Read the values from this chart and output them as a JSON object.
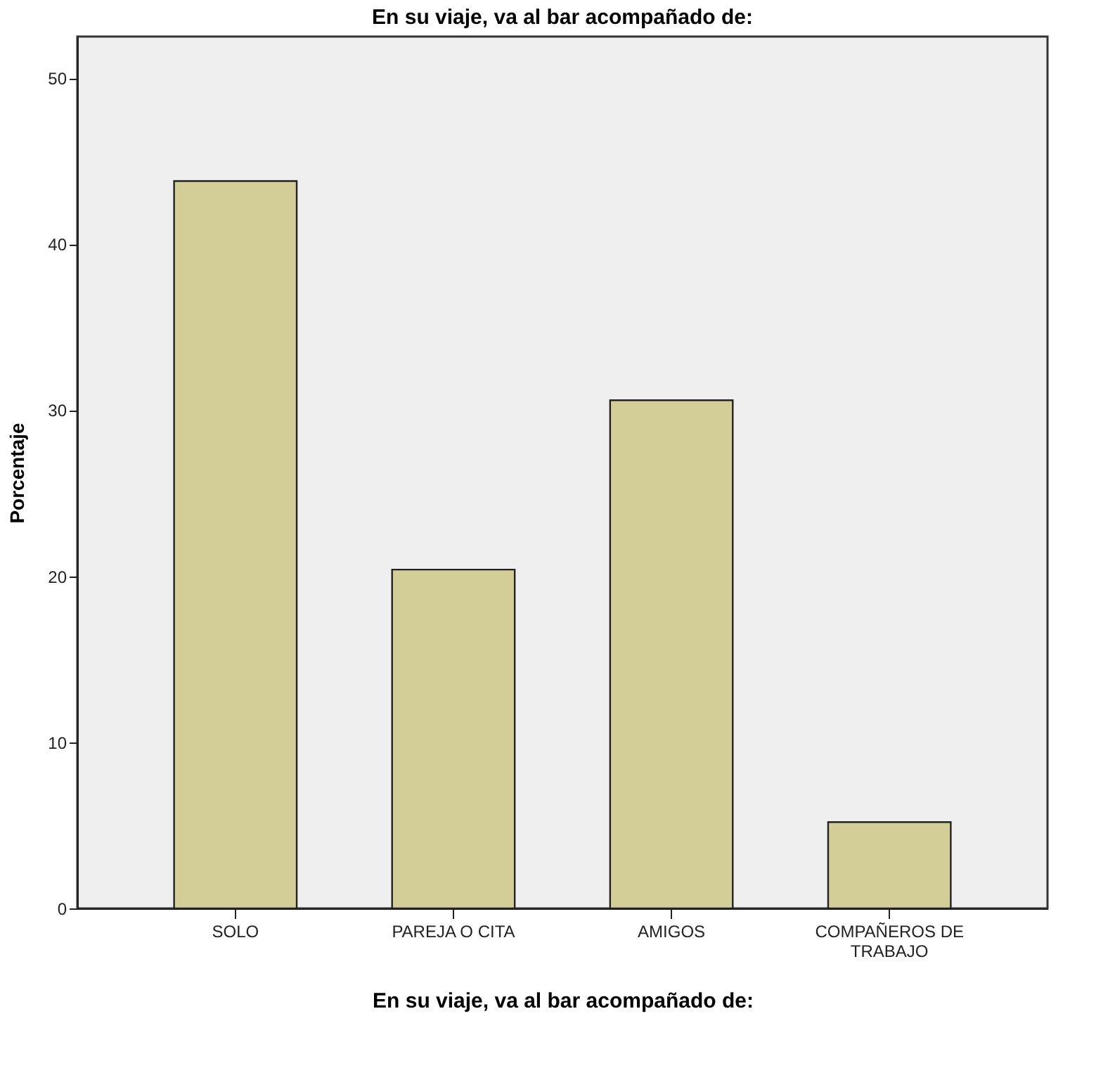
{
  "chart_data": {
    "type": "bar",
    "title": "En su viaje, va al bar acompañado de:",
    "xlabel": "En su viaje, va al bar acompañado de:",
    "ylabel": "Porcentaje",
    "categories": [
      "SOLO",
      "PAREJA O CITA",
      "AMIGOS",
      "COMPAÑEROS DE\nTRABAJO"
    ],
    "values": [
      43.8,
      20.4,
      30.6,
      5.2
    ],
    "color": "#d3ce98",
    "ylim": [
      0,
      52.5
    ],
    "yticks": [
      0,
      10,
      20,
      30,
      40,
      50
    ],
    "grid": false
  }
}
